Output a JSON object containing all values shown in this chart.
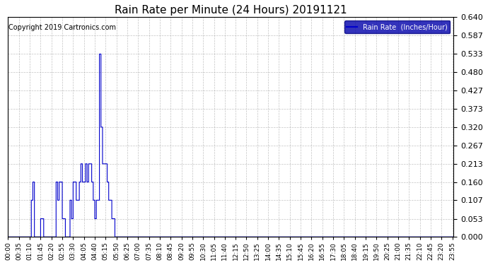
{
  "title": "Rain Rate per Minute (24 Hours) 20191121",
  "copyright_text": "Copyright 2019 Cartronics.com",
  "legend_label": "Rain Rate  (Inches/Hour)",
  "line_color": "#0000cc",
  "background_color": "#ffffff",
  "grid_color": "#aaaaaa",
  "ylim": [
    0.0,
    0.64
  ],
  "yticks": [
    0.0,
    0.053,
    0.107,
    0.16,
    0.213,
    0.267,
    0.32,
    0.373,
    0.427,
    0.48,
    0.533,
    0.587,
    0.64
  ],
  "total_minutes": 1440,
  "xtick_interval_minutes": 35,
  "rain_data": [
    [
      0,
      0.0
    ],
    [
      60,
      0.0
    ],
    [
      75,
      0.107
    ],
    [
      80,
      0.16
    ],
    [
      85,
      0.0
    ],
    [
      100,
      0.0
    ],
    [
      105,
      0.053
    ],
    [
      110,
      0.053
    ],
    [
      115,
      0.0
    ],
    [
      150,
      0.0
    ],
    [
      155,
      0.16
    ],
    [
      160,
      0.107
    ],
    [
      165,
      0.16
    ],
    [
      170,
      0.16
    ],
    [
      175,
      0.053
    ],
    [
      180,
      0.053
    ],
    [
      185,
      0.0
    ],
    [
      195,
      0.0
    ],
    [
      200,
      0.107
    ],
    [
      205,
      0.053
    ],
    [
      210,
      0.16
    ],
    [
      215,
      0.16
    ],
    [
      220,
      0.107
    ],
    [
      225,
      0.107
    ],
    [
      230,
      0.16
    ],
    [
      235,
      0.213
    ],
    [
      240,
      0.16
    ],
    [
      245,
      0.16
    ],
    [
      250,
      0.213
    ],
    [
      255,
      0.16
    ],
    [
      260,
      0.213
    ],
    [
      265,
      0.213
    ],
    [
      270,
      0.16
    ],
    [
      275,
      0.107
    ],
    [
      280,
      0.053
    ],
    [
      285,
      0.107
    ],
    [
      290,
      0.107
    ],
    [
      295,
      0.533
    ],
    [
      300,
      0.32
    ],
    [
      305,
      0.213
    ],
    [
      310,
      0.213
    ],
    [
      315,
      0.213
    ],
    [
      320,
      0.16
    ],
    [
      325,
      0.107
    ],
    [
      330,
      0.107
    ],
    [
      335,
      0.053
    ],
    [
      340,
      0.053
    ],
    [
      345,
      0.0
    ],
    [
      400,
      0.0
    ],
    [
      1439,
      0.0
    ]
  ]
}
